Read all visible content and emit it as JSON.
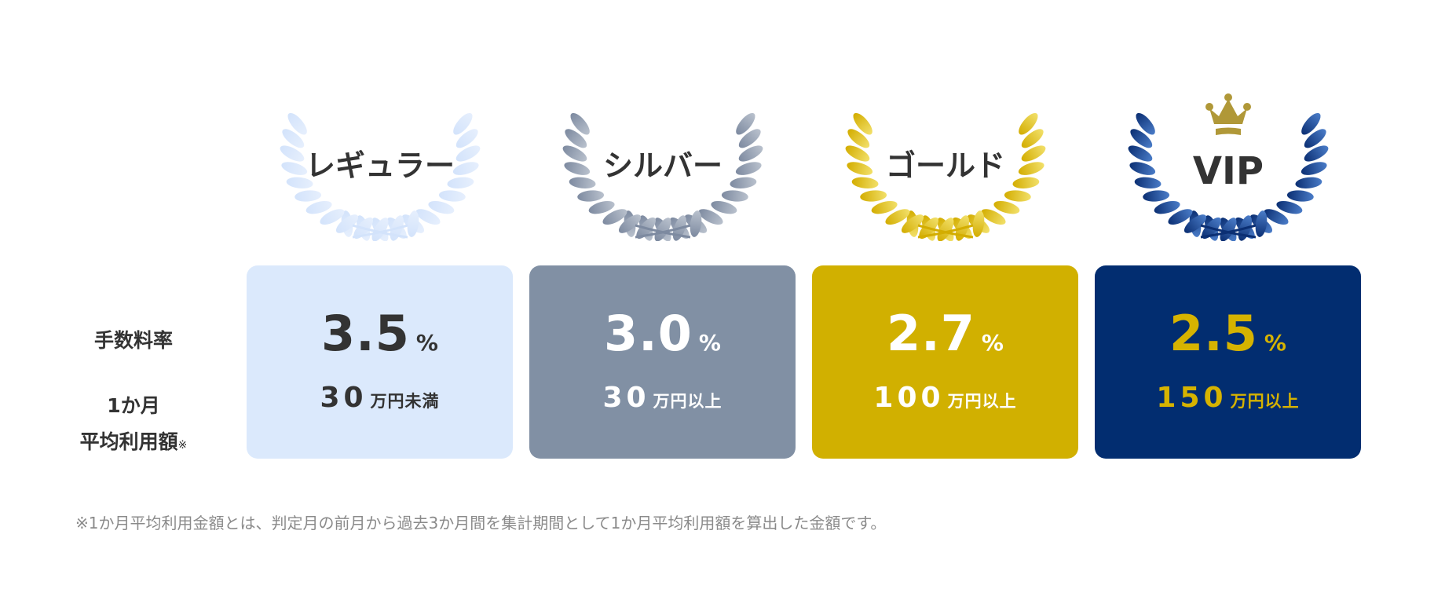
{
  "row_labels": {
    "rate": "手数料率",
    "amount_line1": "1か月",
    "amount_line2": "平均利用額",
    "amount_note_mark": "※"
  },
  "tiers": [
    {
      "name": "レギュラー",
      "rate": "3.5",
      "rate_unit": "%",
      "amount": "30",
      "amount_unit": "万円未満",
      "card_color": "#dbe9fc",
      "text_color": "#333333",
      "laurel_colors": [
        "#e6effd",
        "#d3e3fb"
      ],
      "crown": false
    },
    {
      "name": "シルバー",
      "rate": "3.0",
      "rate_unit": "%",
      "amount": "30",
      "amount_unit": "万円以上",
      "card_color": "#8190a4",
      "text_color": "#ffffff",
      "laurel_colors": [
        "#b9c1cd",
        "#7d8aa0"
      ],
      "crown": false
    },
    {
      "name": "ゴールド",
      "rate": "2.7",
      "rate_unit": "%",
      "amount": "100",
      "amount_unit": "万円以上",
      "card_color": "#d1b000",
      "text_color": "#ffffff",
      "laurel_colors": [
        "#f2e06a",
        "#d3ad00"
      ],
      "crown": false
    },
    {
      "name": "VIP",
      "rate": "2.5",
      "rate_unit": "%",
      "amount": "150",
      "amount_unit": "万円以上",
      "card_color": "#022d70",
      "text_color": "#d6b300",
      "laurel_colors": [
        "#4a7cc8",
        "#0b2f73"
      ],
      "crown": true,
      "crown_icon": "crown-icon",
      "crown_color": "#b09838"
    }
  ],
  "footnote": "※1か月平均利用金額とは、判定月の前月から過去3か月間を集計期間として1か月平均利用額を算出した金額です。"
}
